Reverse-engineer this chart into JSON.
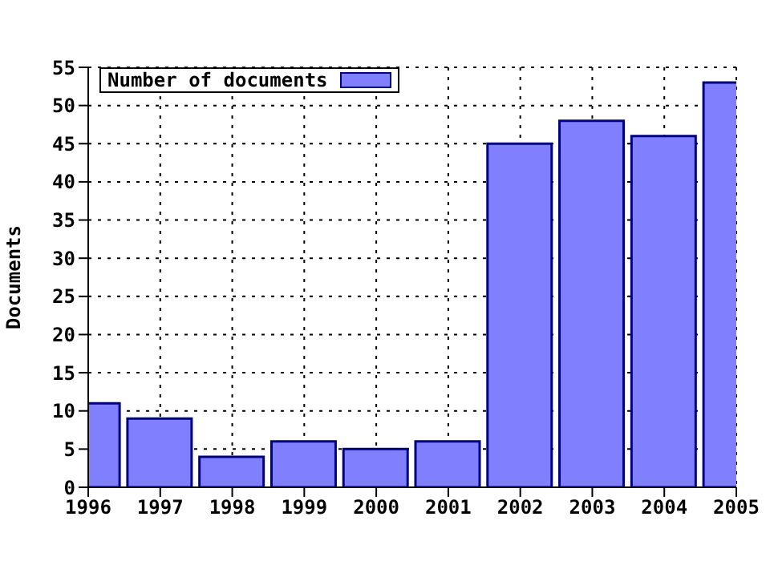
{
  "chart_data": {
    "type": "bar",
    "ylabel": "Documents",
    "x": [
      1996,
      1997,
      1998,
      1999,
      2000,
      2001,
      2002,
      2003,
      2004,
      2005
    ],
    "series": [
      {
        "name": "Number of documents",
        "color": "#8080ff",
        "values": [
          11,
          9,
          4,
          6,
          5,
          6,
          45,
          48,
          46,
          53
        ]
      }
    ],
    "xlim": [
      1996,
      2005
    ],
    "xticks": [
      1996,
      1997,
      1998,
      1999,
      2000,
      2001,
      2002,
      2003,
      2004,
      2005
    ],
    "ylim": [
      0,
      55
    ],
    "yticks": [
      0,
      5,
      10,
      15,
      20,
      25,
      30,
      35,
      40,
      45,
      50,
      55
    ],
    "grid": true,
    "legend": "top left"
  }
}
